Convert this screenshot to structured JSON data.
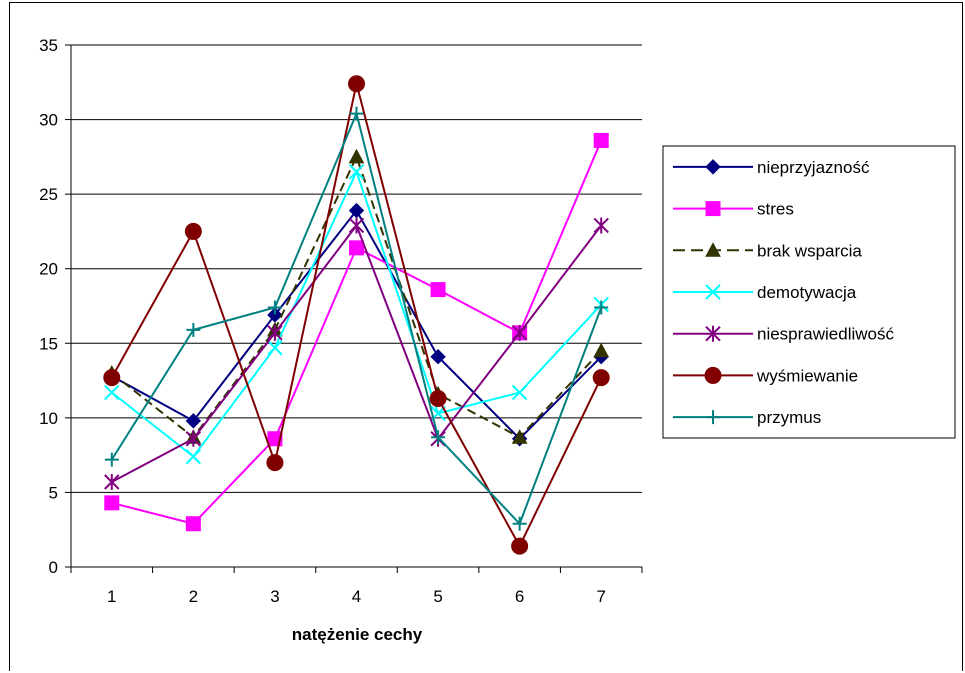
{
  "chart_data": {
    "type": "line",
    "title": "",
    "xlabel": "natężenie cechy",
    "ylabel": "",
    "categories": [
      "1",
      "2",
      "3",
      "4",
      "5",
      "6",
      "7"
    ],
    "ylim": [
      0,
      35
    ],
    "yticks": [
      "0",
      "5",
      "10",
      "15",
      "20",
      "25",
      "30",
      "35"
    ],
    "grid": "horizontal",
    "legend_position": "right",
    "series": [
      {
        "name": "nieprzyjazność",
        "color": "#000080",
        "marker": "diamond",
        "dash": "solid",
        "values": [
          12.8,
          9.8,
          16.9,
          23.9,
          14.1,
          8.6,
          14.1
        ]
      },
      {
        "name": "stres",
        "color": "#FF00FF",
        "marker": "square",
        "dash": "solid",
        "values": [
          4.3,
          2.9,
          8.6,
          21.4,
          18.6,
          15.7,
          28.6
        ]
      },
      {
        "name": "brak wsparcia",
        "color": "#333300",
        "marker": "triangle",
        "dash": "dashed",
        "values": [
          13.0,
          8.7,
          15.9,
          27.5,
          11.6,
          8.7,
          14.5
        ]
      },
      {
        "name": "demotywacja",
        "color": "#00FFFF",
        "marker": "x",
        "dash": "solid",
        "values": [
          11.7,
          7.4,
          14.7,
          26.5,
          10.3,
          11.7,
          17.6
        ]
      },
      {
        "name": "niesprawiedliwość",
        "color": "#800080",
        "marker": "star",
        "dash": "solid",
        "values": [
          5.7,
          8.6,
          15.7,
          22.9,
          8.6,
          15.7,
          22.9
        ]
      },
      {
        "name": "wyśmiewanie",
        "color": "#800000",
        "marker": "circle",
        "dash": "solid",
        "values": [
          12.7,
          22.5,
          7.0,
          32.4,
          11.3,
          1.4,
          12.7
        ]
      },
      {
        "name": "przymus",
        "color": "#008080",
        "marker": "plus",
        "dash": "solid",
        "values": [
          7.2,
          15.9,
          17.4,
          30.4,
          8.7,
          2.9,
          17.4
        ]
      }
    ]
  }
}
